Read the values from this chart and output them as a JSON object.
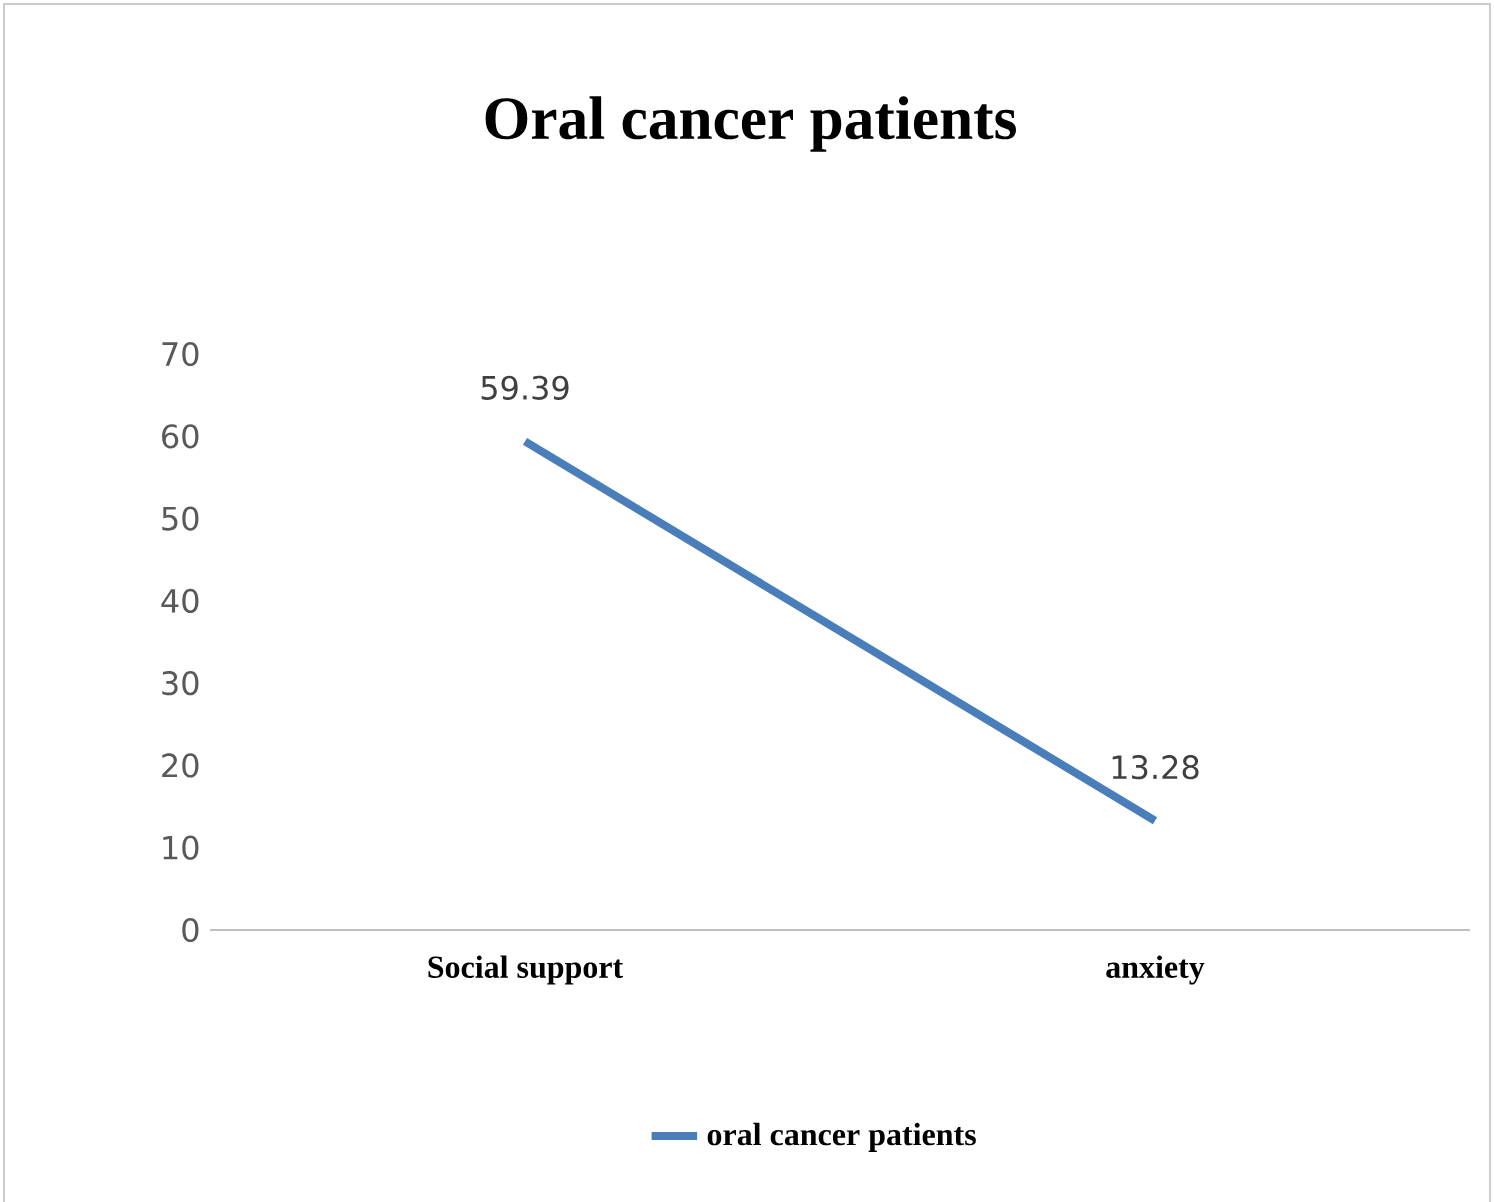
{
  "chart_data": {
    "type": "line",
    "title": "Oral cancer patients",
    "categories": [
      "Social support",
      "anxiety"
    ],
    "series": [
      {
        "name": "oral cancer patients",
        "color": "#4a7ebb",
        "values": [
          59.39,
          13.28
        ]
      }
    ],
    "ylim": [
      0,
      70
    ],
    "yticks": [
      0,
      10,
      20,
      30,
      40,
      50,
      60,
      70
    ],
    "data_labels": true,
    "legend": "bottom",
    "grid": false
  }
}
